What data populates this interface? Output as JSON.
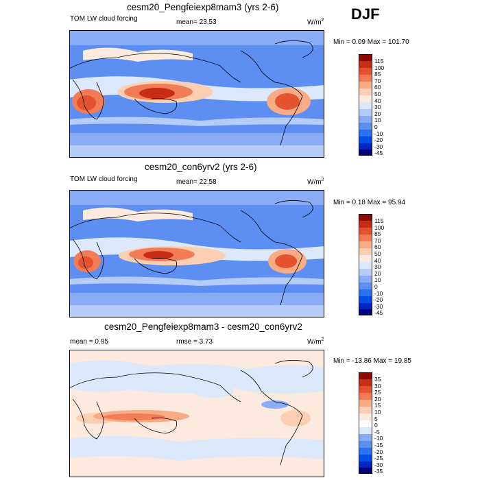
{
  "season": "DJF",
  "colors": {
    "abs": [
      "#00007f",
      "#0025c4",
      "#0050e6",
      "#2a72f0",
      "#5d8ef2",
      "#8aabf5",
      "#b5cbf8",
      "#dce8fb",
      "#fbeadd",
      "#fccfb2",
      "#f9ab86",
      "#f27c55",
      "#e45230",
      "#c62d14",
      "#8c0c05"
    ],
    "diff": [
      "#00007f",
      "#0025c4",
      "#0050e6",
      "#2a72f0",
      "#5d8ef2",
      "#8aabf5",
      "#b5cbf8",
      "#dce8fb",
      "#fbeadd",
      "#fccfb2",
      "#f9ab86",
      "#f27c55",
      "#e45230",
      "#c62d14",
      "#8c0c05"
    ]
  },
  "panels": [
    {
      "title": "cesm20_Pengfeiexp8mam3 (yrs 2-6)",
      "left_label": "TOM LW cloud forcing",
      "center_label": "mean=  23.53",
      "units": "W/m",
      "units_sup": "2",
      "minmax": "Min =   0.09 Max = 101.70",
      "levels": [
        "115",
        "100",
        "85",
        "70",
        "60",
        "50",
        "40",
        "30",
        "20",
        "10",
        "0",
        "-10",
        "-20",
        "-30",
        "-45"
      ]
    },
    {
      "title": "cesm20_con6yrv2 (yrs 2-6)",
      "left_label": "TOM LW cloud forcing",
      "center_label": "mean=  22.58",
      "units": "W/m",
      "units_sup": "2",
      "minmax": "Min =   0.18 Max =  95.94",
      "levels": [
        "115",
        "100",
        "85",
        "70",
        "60",
        "50",
        "40",
        "30",
        "20",
        "10",
        "0",
        "-10",
        "-20",
        "-30",
        "-45"
      ]
    },
    {
      "title": "cesm20_Pengfeiexp8mam3 - cesm20_con6yrv2",
      "left_label": "mean =   0.95",
      "center_label": "rmse =   3.73",
      "units": "W/m",
      "units_sup": "2",
      "minmax": "Min = -13.86 Max =  19.85",
      "levels": [
        "35",
        "30",
        "25",
        "20",
        "15",
        "10",
        "5",
        "0",
        "-5",
        "-10",
        "-15",
        "-20",
        "-25",
        "-30",
        "-35"
      ]
    }
  ]
}
